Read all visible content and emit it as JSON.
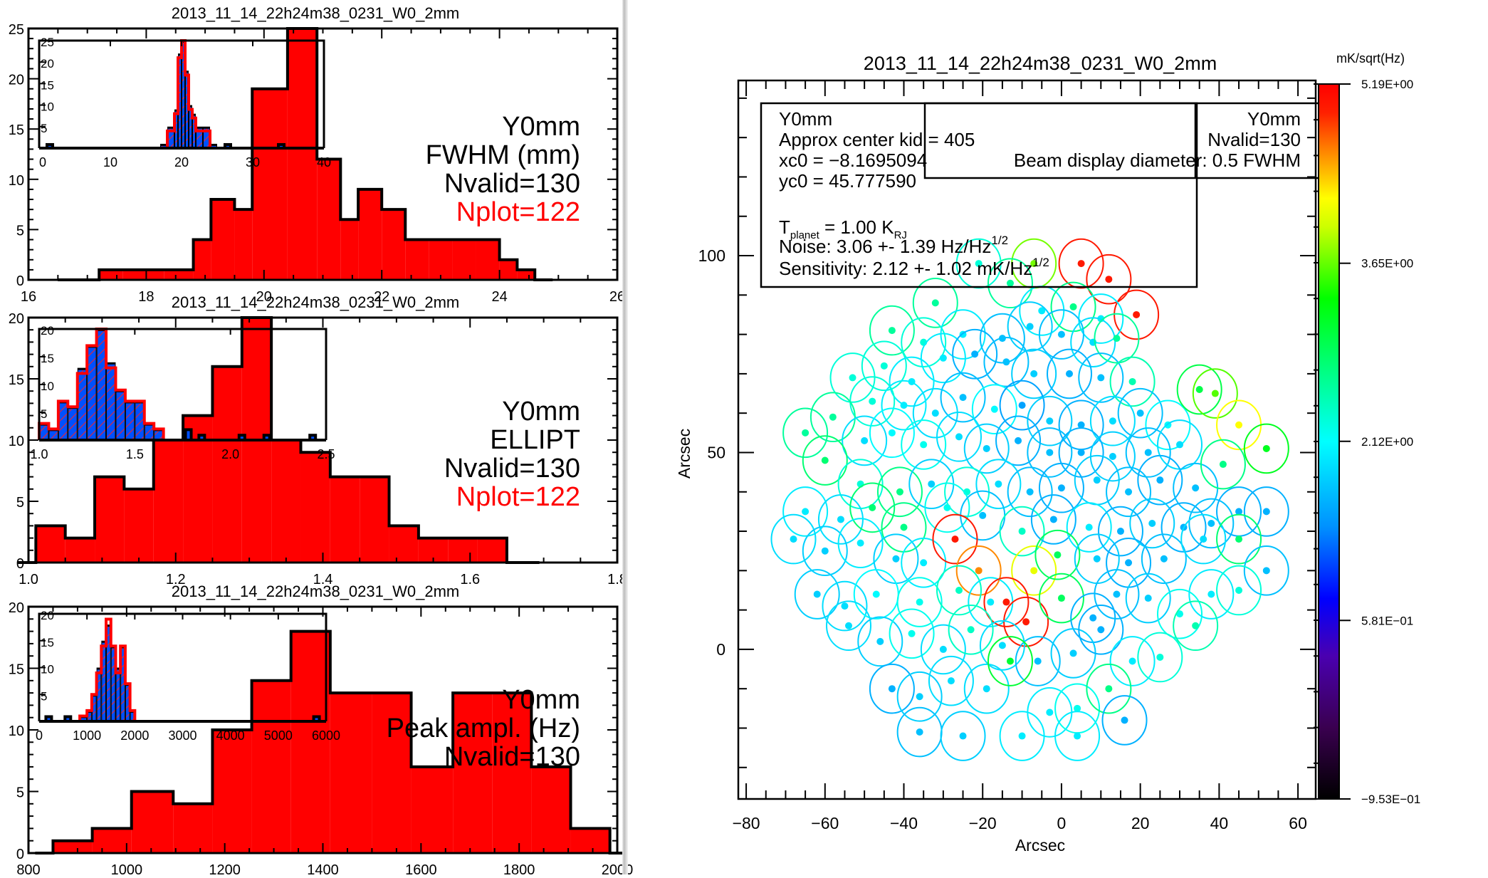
{
  "window": {
    "description": "IDL focal-plane quick-look plots for one scan"
  },
  "chart_data": [
    {
      "type": "bar",
      "id": "fwhm_hist",
      "title": "2013_11_14_22h24m38_0231_W0_2mm",
      "xlabel": "",
      "ylabel": "",
      "xlim": [
        16,
        26
      ],
      "ylim": [
        0,
        25
      ],
      "xticks": [
        "16",
        "18",
        "20",
        "22",
        "24",
        "26"
      ],
      "yticks": [
        "0",
        "5",
        "10",
        "15",
        "20",
        "25"
      ],
      "bin_edges": [
        16.8,
        17.2,
        17.6,
        18.0,
        18.3,
        18.8,
        19.1,
        19.5,
        19.8,
        20.4,
        20.9,
        21.3,
        21.6,
        22.0,
        22.4,
        22.8,
        23.2,
        23.6,
        24.0,
        24.3,
        24.6
      ],
      "values": [
        0,
        1,
        1,
        1,
        1,
        4,
        8,
        7,
        19,
        25,
        12,
        6,
        9,
        7,
        4,
        4,
        4,
        4,
        2,
        1
      ],
      "fill": "#ff0000",
      "annotations": [
        {
          "text": "Y0mm",
          "color": "#000000"
        },
        {
          "text": "FWHM (mm)",
          "color": "#000000"
        },
        {
          "text": "Nvalid=130",
          "color": "#000000"
        },
        {
          "text": "Nplot=122",
          "color": "#ff0000"
        }
      ],
      "inset": {
        "xlim": [
          0,
          40
        ],
        "ylim": [
          0,
          25
        ],
        "xticks": [
          "0",
          "10",
          "20",
          "30",
          "40"
        ],
        "yticks": [
          "5",
          "10",
          "15",
          "20",
          "25"
        ],
        "bin_edges": [
          17,
          18,
          19,
          19.5,
          20,
          20.5,
          21,
          21.5,
          22,
          23,
          24,
          25
        ],
        "all_values": [
          1,
          5,
          9,
          22,
          25,
          18,
          10,
          8,
          5,
          5,
          1
        ],
        "plot_values": [
          0,
          4,
          8,
          21,
          25,
          17,
          9,
          7,
          4,
          4,
          0
        ],
        "outliers": [
          {
            "x": 1.5,
            "n": 1
          },
          {
            "x": 26.5,
            "n": 1
          },
          {
            "x": 34,
            "n": 1
          }
        ]
      }
    },
    {
      "type": "bar",
      "id": "ellipt_hist",
      "title": "2013_11_14_22h24m38_0231_W0_2mm",
      "xlim": [
        1.0,
        1.8
      ],
      "ylim": [
        0,
        20
      ],
      "xticks": [
        "1.0",
        "1.2",
        "1.4",
        "1.6",
        "1.8"
      ],
      "yticks": [
        "0",
        "5",
        "10",
        "15",
        "20"
      ],
      "bin_edges": [
        1.01,
        1.05,
        1.09,
        1.13,
        1.17,
        1.21,
        1.25,
        1.29,
        1.33,
        1.37,
        1.41,
        1.45,
        1.49,
        1.53,
        1.57,
        1.61,
        1.65,
        1.67
      ],
      "values": [
        3,
        2,
        7,
        6,
        10,
        12,
        16,
        20,
        10,
        9,
        7,
        7,
        3,
        2,
        2,
        2,
        0
      ],
      "fill": "#ff0000",
      "annotations": [
        {
          "text": "Y0mm",
          "color": "#000000"
        },
        {
          "text": "ELLIPT",
          "color": "#000000"
        },
        {
          "text": "Nvalid=130",
          "color": "#000000"
        },
        {
          "text": "Nplot=122",
          "color": "#ff0000"
        }
      ],
      "inset": {
        "xlim": [
          1.0,
          2.5
        ],
        "ylim": [
          0,
          20
        ],
        "xticks": [
          "1.0",
          "1.5",
          "2.0",
          "2.5"
        ],
        "yticks": [
          "5",
          "10",
          "15",
          "20"
        ],
        "bin_edges": [
          1.0,
          1.05,
          1.1,
          1.15,
          1.2,
          1.25,
          1.3,
          1.35,
          1.4,
          1.45,
          1.5,
          1.55,
          1.6,
          1.65
        ],
        "all_values": [
          3,
          2,
          7,
          6,
          13,
          17,
          20,
          14,
          9,
          7,
          7,
          3,
          2
        ],
        "plot_values": [
          3,
          2,
          7,
          6,
          12,
          17,
          20,
          13,
          9,
          7,
          7,
          3,
          2
        ],
        "outliers": [
          {
            "x": 1.78,
            "n": 2
          },
          {
            "x": 1.85,
            "n": 1
          },
          {
            "x": 2.06,
            "n": 1
          },
          {
            "x": 2.19,
            "n": 1
          },
          {
            "x": 2.43,
            "n": 1
          }
        ]
      }
    },
    {
      "type": "bar",
      "id": "peak_hist",
      "title": "2013_11_14_22h24m38_0231_W0_2mm",
      "xlim": [
        800,
        2000
      ],
      "ylim": [
        0,
        20
      ],
      "xticks": [
        "800",
        "1000",
        "1200",
        "1400",
        "1600",
        "1800",
        "2000"
      ],
      "yticks": [
        "0",
        "5",
        "10",
        "15",
        "20"
      ],
      "bin_edges": [
        850,
        930,
        1010,
        1095,
        1175,
        1255,
        1335,
        1415,
        1500,
        1580,
        1665,
        1745,
        1825,
        1905,
        1985
      ],
      "values": [
        1,
        2,
        5,
        4,
        10,
        14,
        18,
        13,
        13,
        7,
        13,
        13,
        7,
        2
      ],
      "fill": "#ff0000",
      "annotations": [
        {
          "text": "Y0mm",
          "color": "#000000"
        },
        {
          "text": "Peak ampl. (Hz)",
          "color": "#000000"
        },
        {
          "text": "Nvalid=130",
          "color": "#000000"
        }
      ],
      "inset": {
        "xlim": [
          0,
          6000
        ],
        "ylim": [
          0,
          20
        ],
        "xticks": [
          "0",
          "1000",
          "2000",
          "3000",
          "4000",
          "5000",
          "6000"
        ],
        "yticks": [
          "5",
          "10",
          "15",
          "20"
        ],
        "bin_edges": [
          850,
          1000,
          1100,
          1200,
          1300,
          1400,
          1500,
          1600,
          1700,
          1800,
          1900,
          2000
        ],
        "all_values": [
          1,
          2,
          5,
          10,
          15,
          18,
          14,
          10,
          14,
          7,
          2
        ],
        "plot_values": [
          1,
          2,
          5,
          9,
          14,
          19,
          14,
          9,
          14,
          7,
          2
        ],
        "outliers": [
          {
            "x": 200,
            "n": 1
          },
          {
            "x": 600,
            "n": 1
          },
          {
            "x": 5800,
            "n": 1
          }
        ]
      }
    },
    {
      "type": "scatter",
      "id": "focal_plane_map",
      "title": "2013_11_14_22h24m38_0231_W0_2mm",
      "xlabel": "Arcsec",
      "ylabel": "Arcsec",
      "xlim": [
        -82,
        64.5
      ],
      "ylim": [
        -38,
        144.5
      ],
      "xticks": [
        "-80",
        "-60",
        "-40",
        "-20",
        "0",
        "20",
        "40",
        "60"
      ],
      "yticks": [
        "0",
        "50",
        "100"
      ],
      "colorbar": {
        "title": "mK/sqrt(Hz)",
        "min": -0.953,
        "max": 5.19,
        "labels": [
          "5.19E+00",
          "3.65E+00",
          "2.12E+00",
          "5.81E-01",
          "-9.53E-01"
        ],
        "label_values": [
          5.19,
          3.65,
          2.12,
          0.581,
          -0.953
        ]
      },
      "legend_box_left": {
        "lines": [
          "Y0mm",
          "Approx center kid = 405",
          "xc0 = -8.1695094",
          "yc0 = 45.777590",
          "",
          "T_planet = 1.00 K_RJ",
          "Noise:  3.06 +- 1.39 Hz/Hz^1/2",
          "Sensitivity:  2.12 +- 1.02 mK/Hz^1/2"
        ],
        "t_main": "T",
        "t_sub": "planet",
        "t_val": " = 1.00 K",
        "t_unit_sub": "RJ",
        "noise_main": "Noise:  3.06 +- 1.39 Hz/Hz",
        "sens_main": "Sensitivity:  2.12 +- 1.02 mK/Hz",
        "sup": "1/2",
        "line_y0mm": "Y0mm",
        "line_kid": "Approx center kid = 405",
        "line_xc0": "xc0 = −8.1695094",
        "line_yc0": "yc0 = 45.777590"
      },
      "legend_box_right": {
        "line1": "Y0mm",
        "line2": "Nvalid=130",
        "line3": "Beam display diameter: 0.5 FWHM",
        "line3_right": "0.5 FWHM",
        "line3_left": "Beam display diameter:"
      },
      "beams": [
        [
          -21,
          98,
          2.3
        ],
        [
          -7,
          98,
          3.7
        ],
        [
          5,
          98,
          5.0
        ],
        [
          12,
          94,
          5.0
        ],
        [
          19,
          85,
          5.0
        ],
        [
          -32,
          88,
          2.6
        ],
        [
          -13,
          93,
          2.6
        ],
        [
          -5,
          86,
          2.0
        ],
        [
          3,
          87,
          2.7
        ],
        [
          10,
          84,
          2.0
        ],
        [
          -43,
          81,
          2.6
        ],
        [
          -35,
          78,
          2.3
        ],
        [
          -25,
          80,
          2.0
        ],
        [
          -15,
          79,
          1.7
        ],
        [
          -8,
          82,
          1.8
        ],
        [
          0,
          80,
          1.7
        ],
        [
          8,
          78,
          1.9
        ],
        [
          14,
          79,
          2.6
        ],
        [
          -53,
          69,
          2.3
        ],
        [
          -45,
          72,
          2.3
        ],
        [
          -38,
          68,
          2.0
        ],
        [
          -30,
          74,
          2.0
        ],
        [
          -22,
          75,
          1.6
        ],
        [
          -14,
          73,
          1.7
        ],
        [
          -7,
          70,
          1.8
        ],
        [
          2,
          70,
          1.6
        ],
        [
          10,
          69,
          1.7
        ],
        [
          18,
          68,
          2.5
        ],
        [
          -48,
          63,
          2.3
        ],
        [
          -40,
          62,
          2.0
        ],
        [
          -32,
          60,
          1.9
        ],
        [
          -25,
          64,
          1.7
        ],
        [
          -17,
          61,
          2.1
        ],
        [
          -10,
          62,
          1.5
        ],
        [
          -3,
          58,
          1.8
        ],
        [
          5,
          57,
          1.6
        ],
        [
          13,
          58,
          1.9
        ],
        [
          20,
          60,
          1.7
        ],
        [
          27,
          57,
          2.1
        ],
        [
          35,
          66,
          3.0
        ],
        [
          -65,
          55,
          2.6
        ],
        [
          -58,
          59,
          2.6
        ],
        [
          -50,
          53,
          1.9
        ],
        [
          -43,
          55,
          2.1
        ],
        [
          -35,
          52,
          2.2
        ],
        [
          -26,
          54,
          1.9
        ],
        [
          -19,
          51,
          1.8
        ],
        [
          -11,
          53,
          1.6
        ],
        [
          -3,
          50,
          1.7
        ],
        [
          5,
          50,
          1.6
        ],
        [
          13,
          49,
          1.8
        ],
        [
          22,
          50,
          1.7
        ],
        [
          30,
          52,
          1.9
        ],
        [
          39,
          65,
          3.6
        ],
        [
          45,
          57,
          4.2
        ],
        [
          -60,
          48,
          2.8
        ],
        [
          -51,
          42,
          2.3
        ],
        [
          -41,
          40,
          2.7
        ],
        [
          -33,
          42,
          1.8
        ],
        [
          -24,
          40,
          2.3
        ],
        [
          -16,
          42,
          1.9
        ],
        [
          -8,
          40,
          1.7
        ],
        [
          0,
          41,
          1.6
        ],
        [
          9,
          43,
          1.8
        ],
        [
          17,
          40,
          1.7
        ],
        [
          25,
          43,
          1.6
        ],
        [
          34,
          41,
          1.7
        ],
        [
          41,
          47,
          2.7
        ],
        [
          52,
          51,
          3.2
        ],
        [
          -65,
          35,
          2.0
        ],
        [
          -56,
          33,
          1.9
        ],
        [
          -48,
          36,
          2.8
        ],
        [
          -40,
          31,
          2.7
        ],
        [
          -29,
          36,
          2.2
        ],
        [
          -20,
          34,
          1.7
        ],
        [
          -10,
          30,
          2.4
        ],
        [
          -2,
          33,
          1.6
        ],
        [
          7,
          31,
          2.0
        ],
        [
          15,
          30,
          1.6
        ],
        [
          23,
          32,
          1.8
        ],
        [
          31,
          31,
          1.6
        ],
        [
          38,
          32,
          1.7
        ],
        [
          45,
          35,
          1.6
        ],
        [
          52,
          35,
          1.6
        ],
        [
          -68,
          28,
          1.9
        ],
        [
          -60,
          25,
          1.8
        ],
        [
          -51,
          27,
          2.0
        ],
        [
          -42,
          23,
          1.8
        ],
        [
          -35,
          22,
          2.0
        ],
        [
          -27,
          28,
          5.0
        ],
        [
          -21,
          20,
          4.6
        ],
        [
          -7,
          20,
          4.1
        ],
        [
          -1,
          24,
          2.9
        ],
        [
          9,
          23,
          1.8
        ],
        [
          17,
          22,
          1.6
        ],
        [
          26,
          23,
          1.7
        ],
        [
          36,
          28,
          1.9
        ],
        [
          45,
          28,
          2.8
        ],
        [
          52,
          20,
          1.7
        ],
        [
          -62,
          14,
          1.8
        ],
        [
          -55,
          11,
          1.9
        ],
        [
          -47,
          14,
          2.1
        ],
        [
          -36,
          12,
          2.2
        ],
        [
          -26,
          15,
          2.4
        ],
        [
          -18,
          12,
          2.0
        ],
        [
          -14,
          12,
          5.0
        ],
        [
          -9,
          7,
          5.0
        ],
        [
          0,
          13,
          2.9
        ],
        [
          8,
          8,
          1.6
        ],
        [
          14,
          14,
          1.7
        ],
        [
          22,
          13,
          1.8
        ],
        [
          30,
          9,
          2.2
        ],
        [
          38,
          14,
          2.0
        ],
        [
          45,
          15,
          2.3
        ],
        [
          -54,
          6,
          1.9
        ],
        [
          -46,
          2,
          1.8
        ],
        [
          -38,
          4,
          2.2
        ],
        [
          -30,
          0,
          1.9
        ],
        [
          -23,
          5,
          2.4
        ],
        [
          -15,
          1,
          1.9
        ],
        [
          -6,
          -3,
          1.7
        ],
        [
          3,
          -1,
          1.8
        ],
        [
          10,
          5,
          1.6
        ],
        [
          18,
          -3,
          2.0
        ],
        [
          25,
          -2,
          2.3
        ],
        [
          34,
          6,
          2.5
        ],
        [
          -43,
          -10,
          1.6
        ],
        [
          -36,
          -12,
          1.8
        ],
        [
          -28,
          -8,
          1.9
        ],
        [
          -19,
          -10,
          1.9
        ],
        [
          -13,
          -3,
          3.1
        ],
        [
          -3,
          -16,
          2.0
        ],
        [
          4,
          -15,
          2.2
        ],
        [
          12,
          -10,
          2.7
        ],
        [
          16,
          -18,
          1.6
        ],
        [
          -36,
          -21,
          1.7
        ],
        [
          -25,
          -22,
          1.8
        ],
        [
          -10,
          -22,
          2.0
        ],
        [
          4,
          -22,
          2.0
        ]
      ]
    }
  ]
}
